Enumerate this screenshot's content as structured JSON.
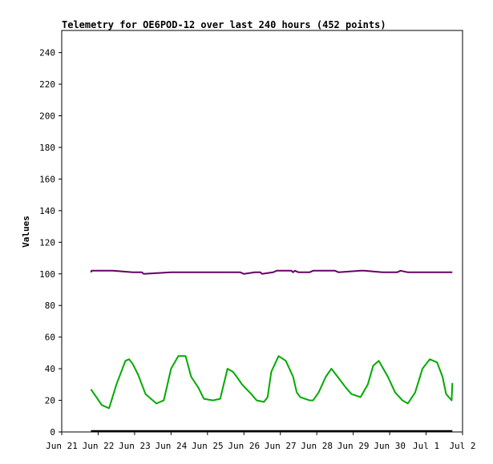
{
  "chart_data": {
    "type": "line",
    "title": "Telemetry for OE6POD-12 over last 240 hours (452 points)",
    "xlabel": "",
    "ylabel": "Values",
    "ylim": [
      0,
      254
    ],
    "y_ticks": [
      0,
      20,
      40,
      60,
      80,
      100,
      120,
      140,
      160,
      180,
      200,
      220,
      240
    ],
    "x_ticks": [
      "Jun 21",
      "Jun 22",
      "Jun 23",
      "Jun 24",
      "Jun 25",
      "Jun 26",
      "Jun 27",
      "Jun 28",
      "Jun 29",
      "Jun 30",
      "Jul 1",
      "Jul 2"
    ],
    "xlim": [
      0,
      11
    ],
    "grid": false,
    "legend": "none",
    "series": [
      {
        "color": "#660066",
        "x": [
          0.8,
          0.82,
          1.4,
          1.95,
          2.1,
          2.2,
          2.25,
          3.0,
          3.7,
          4.0,
          4.3,
          4.7,
          4.9,
          5.0,
          5.3,
          5.45,
          5.5,
          5.8,
          5.9,
          6.3,
          6.35,
          6.4,
          6.5,
          6.8,
          6.9,
          7.5,
          7.6,
          8.2,
          8.3,
          8.8,
          9.2,
          9.3,
          9.5,
          9.55,
          10.2,
          10.5,
          10.7,
          10.72
        ],
        "values": [
          101,
          102,
          102,
          101,
          101,
          101,
          100,
          101,
          101,
          101,
          101,
          101,
          101,
          100,
          101,
          101,
          100,
          101,
          102,
          102,
          101,
          102,
          101,
          101,
          102,
          102,
          101,
          102,
          102,
          101,
          101,
          102,
          101,
          101,
          101,
          101,
          101,
          101
        ]
      },
      {
        "color": "#00aa00",
        "x": [
          0.8,
          0.95,
          1.1,
          1.3,
          1.5,
          1.75,
          1.85,
          1.95,
          2.1,
          2.3,
          2.5,
          2.6,
          2.8,
          3.0,
          3.2,
          3.4,
          3.55,
          3.75,
          3.9,
          4.15,
          4.35,
          4.55,
          4.7,
          4.8,
          4.95,
          5.2,
          5.35,
          5.55,
          5.65,
          5.75,
          5.95,
          6.15,
          6.35,
          6.45,
          6.55,
          6.8,
          6.9,
          7.05,
          7.25,
          7.4,
          7.6,
          7.8,
          7.95,
          8.2,
          8.4,
          8.55,
          8.7,
          8.95,
          9.15,
          9.35,
          9.5,
          9.7,
          9.9,
          10.1,
          10.3,
          10.45,
          10.55,
          10.7,
          10.72
        ],
        "values": [
          27,
          22,
          17,
          15,
          30,
          45,
          46,
          43,
          36,
          24,
          20,
          18,
          20,
          40,
          48,
          48,
          35,
          28,
          21,
          20,
          21,
          40,
          38,
          35,
          30,
          24,
          20,
          19,
          22,
          38,
          48,
          45,
          35,
          25,
          22,
          20,
          20,
          25,
          35,
          40,
          34,
          28,
          24,
          22,
          30,
          42,
          45,
          35,
          25,
          20,
          18,
          25,
          40,
          46,
          44,
          35,
          24,
          20,
          31
        ]
      },
      {
        "color": "#000000",
        "x": [
          0.8,
          10.72
        ],
        "values": [
          0.6,
          0.6
        ]
      }
    ]
  }
}
